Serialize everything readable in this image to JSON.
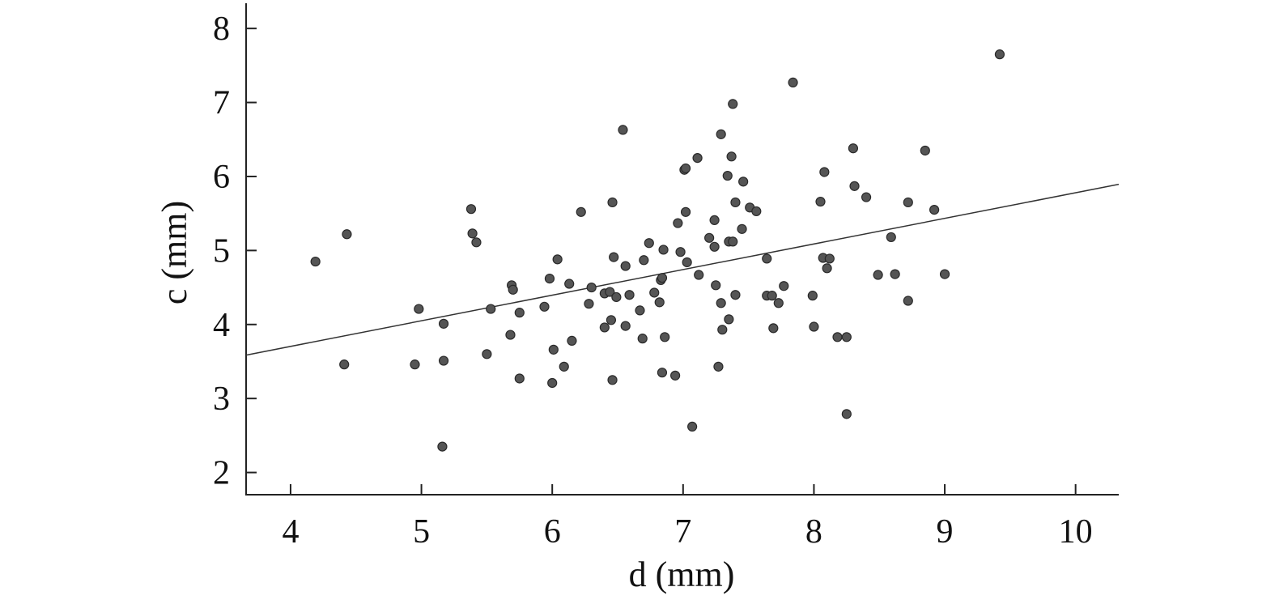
{
  "chart_data": {
    "type": "scatter",
    "title": "",
    "xlabel": "d (mm)",
    "ylabel": "c (mm)",
    "xlim": [
      3.66,
      10.33
    ],
    "ylim": [
      1.7,
      8.33
    ],
    "grid": false,
    "xticks": [
      "4",
      "5",
      "6",
      "7",
      "8",
      "9",
      "10"
    ],
    "yticks": [
      "2",
      "3",
      "4",
      "5",
      "6",
      "7",
      "8"
    ],
    "point_color": "#555555",
    "fit_line": {
      "slope": 0.346,
      "intercept": 2.32,
      "color": "#333333"
    },
    "points": [
      [
        4.19,
        4.85
      ],
      [
        4.43,
        5.22
      ],
      [
        4.41,
        3.46
      ],
      [
        4.98,
        4.21
      ],
      [
        4.95,
        3.46
      ],
      [
        5.17,
        4.01
      ],
      [
        5.17,
        3.51
      ],
      [
        5.16,
        2.35
      ],
      [
        5.38,
        5.56
      ],
      [
        5.39,
        5.23
      ],
      [
        5.42,
        5.11
      ],
      [
        5.53,
        4.21
      ],
      [
        5.5,
        3.6
      ],
      [
        5.69,
        4.53
      ],
      [
        5.7,
        4.47
      ],
      [
        5.75,
        4.16
      ],
      [
        5.68,
        3.86
      ],
      [
        5.75,
        3.27
      ],
      [
        5.98,
        4.62
      ],
      [
        5.94,
        4.24
      ],
      [
        6.04,
        4.88
      ],
      [
        6.01,
        3.66
      ],
      [
        6.0,
        3.21
      ],
      [
        6.09,
        3.43
      ],
      [
        6.13,
        4.55
      ],
      [
        6.15,
        3.78
      ],
      [
        6.22,
        5.52
      ],
      [
        6.3,
        4.5
      ],
      [
        6.28,
        4.28
      ],
      [
        6.4,
        3.96
      ],
      [
        6.4,
        4.42
      ],
      [
        6.44,
        4.44
      ],
      [
        6.45,
        4.06
      ],
      [
        6.46,
        5.65
      ],
      [
        6.47,
        4.91
      ],
      [
        6.46,
        3.25
      ],
      [
        6.49,
        4.37
      ],
      [
        6.54,
        6.63
      ],
      [
        6.56,
        4.79
      ],
      [
        6.56,
        3.98
      ],
      [
        6.59,
        4.4
      ],
      [
        6.67,
        4.19
      ],
      [
        6.69,
        3.81
      ],
      [
        6.7,
        4.87
      ],
      [
        6.74,
        5.1
      ],
      [
        6.78,
        4.43
      ],
      [
        6.82,
        4.3
      ],
      [
        6.83,
        4.6
      ],
      [
        6.84,
        4.63
      ],
      [
        6.85,
        5.01
      ],
      [
        6.86,
        3.83
      ],
      [
        6.84,
        3.35
      ],
      [
        6.94,
        3.31
      ],
      [
        6.96,
        5.37
      ],
      [
        6.98,
        4.98
      ],
      [
        7.01,
        6.09
      ],
      [
        7.02,
        6.11
      ],
      [
        7.02,
        5.52
      ],
      [
        7.03,
        4.84
      ],
      [
        7.07,
        2.62
      ],
      [
        7.11,
        6.25
      ],
      [
        7.12,
        4.67
      ],
      [
        7.2,
        5.17
      ],
      [
        7.24,
        5.41
      ],
      [
        7.24,
        5.05
      ],
      [
        7.25,
        4.53
      ],
      [
        7.27,
        3.43
      ],
      [
        7.29,
        6.57
      ],
      [
        7.29,
        4.29
      ],
      [
        7.3,
        3.93
      ],
      [
        7.34,
        6.01
      ],
      [
        7.37,
        6.27
      ],
      [
        7.35,
        5.12
      ],
      [
        7.38,
        5.12
      ],
      [
        7.35,
        4.07
      ],
      [
        7.38,
        6.98
      ],
      [
        7.4,
        5.65
      ],
      [
        7.4,
        4.4
      ],
      [
        7.46,
        5.93
      ],
      [
        7.45,
        5.29
      ],
      [
        7.51,
        5.58
      ],
      [
        7.56,
        5.53
      ],
      [
        7.64,
        4.89
      ],
      [
        7.64,
        4.39
      ],
      [
        7.68,
        4.39
      ],
      [
        7.69,
        3.95
      ],
      [
        7.73,
        4.29
      ],
      [
        7.77,
        4.52
      ],
      [
        7.84,
        7.27
      ],
      [
        7.99,
        4.39
      ],
      [
        8.0,
        3.97
      ],
      [
        8.05,
        5.66
      ],
      [
        8.08,
        6.06
      ],
      [
        8.07,
        4.9
      ],
      [
        8.12,
        4.89
      ],
      [
        8.1,
        4.76
      ],
      [
        8.18,
        3.83
      ],
      [
        8.25,
        3.83
      ],
      [
        8.25,
        2.79
      ],
      [
        8.3,
        6.38
      ],
      [
        8.31,
        5.87
      ],
      [
        8.4,
        5.72
      ],
      [
        8.49,
        4.67
      ],
      [
        8.59,
        5.18
      ],
      [
        8.62,
        4.68
      ],
      [
        8.72,
        5.65
      ],
      [
        8.72,
        4.32
      ],
      [
        8.85,
        6.35
      ],
      [
        8.92,
        5.55
      ],
      [
        9.0,
        4.68
      ],
      [
        9.42,
        7.65
      ]
    ]
  }
}
